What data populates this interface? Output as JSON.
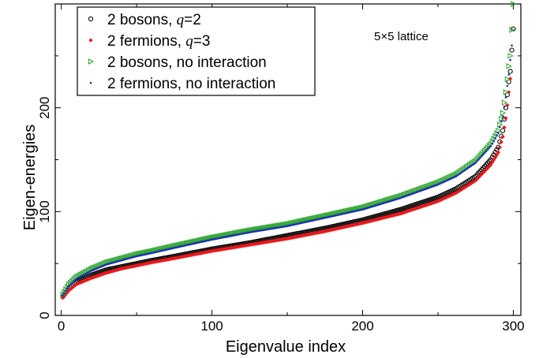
{
  "chart_data": {
    "type": "scatter",
    "xlabel": "Eigenvalue index",
    "ylabel": "Eigen-energies",
    "xlim": [
      -4,
      305
    ],
    "ylim": [
      0,
      300
    ],
    "xticks": [
      0,
      100,
      200,
      300
    ],
    "yticks": [
      0,
      100,
      200
    ],
    "annotation": "5×5 lattice",
    "legend_position": "top-left",
    "series": [
      {
        "name": "2 bosons, q=2",
        "label_parts": [
          "2 bosons, ",
          "q",
          "=2"
        ],
        "marker": "open-circle",
        "color": "#000000",
        "x": [
          1,
          5,
          10,
          20,
          30,
          40,
          50,
          60,
          75,
          100,
          125,
          150,
          175,
          200,
          225,
          250,
          262,
          275,
          285,
          290,
          293,
          295,
          297,
          298,
          300
        ],
        "y": [
          18,
          26,
          32,
          39,
          44,
          47,
          50,
          53,
          57,
          64,
          70,
          77,
          84,
          92,
          102,
          114,
          122,
          134,
          150,
          162,
          178,
          200,
          225,
          235,
          276
        ]
      },
      {
        "name": "2 fermions, q=3",
        "label_parts": [
          "2 fermions, ",
          "q",
          "=3"
        ],
        "marker": "small-diamond",
        "color": "#e8191c",
        "x": [
          1,
          5,
          10,
          20,
          30,
          40,
          50,
          60,
          75,
          100,
          125,
          150,
          175,
          200,
          225,
          250,
          262,
          275,
          285,
          290,
          293,
          295,
          297,
          298
        ],
        "y": [
          17,
          24,
          30,
          36,
          41,
          45,
          48,
          51,
          55,
          62,
          68,
          74,
          81,
          89,
          98,
          110,
          118,
          130,
          145,
          157,
          172,
          190,
          215,
          228
        ]
      },
      {
        "name": "2 bosons, no interaction",
        "label_parts": [
          "2 bosons, no interaction"
        ],
        "marker": "open-triangle-right",
        "color": "#2aa12a",
        "x": [
          1,
          5,
          10,
          20,
          30,
          40,
          50,
          60,
          75,
          100,
          125,
          150,
          175,
          200,
          225,
          250,
          262,
          275,
          285,
          290,
          293,
          295,
          297,
          298,
          300
        ],
        "y": [
          20,
          30,
          37,
          45,
          51,
          55,
          59,
          62,
          67,
          75,
          82,
          88,
          96,
          104,
          115,
          128,
          136,
          149,
          165,
          178,
          195,
          215,
          240,
          250,
          300
        ]
      },
      {
        "name": "2 fermions, no interaction",
        "label_parts": [
          "2 fermions, no interaction"
        ],
        "marker": "dot",
        "color": "#1a2fb8",
        "x": [
          1,
          5,
          10,
          20,
          30,
          40,
          50,
          60,
          75,
          100,
          125,
          150,
          175,
          200,
          225,
          250,
          262,
          275,
          285,
          290,
          293,
          295,
          297,
          299
        ],
        "y": [
          19,
          28,
          35,
          43,
          49,
          53,
          57,
          60,
          65,
          73,
          80,
          86,
          94,
          102,
          113,
          126,
          134,
          147,
          163,
          176,
          192,
          210,
          232,
          260
        ]
      }
    ]
  }
}
